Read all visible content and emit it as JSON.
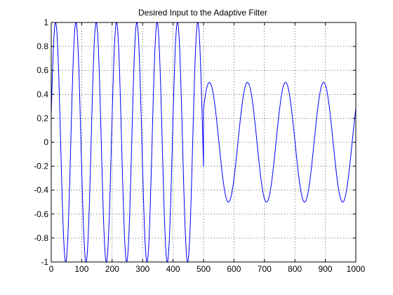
{
  "chart_data": {
    "type": "line",
    "title": "Desired Input to the Adaptive Filter",
    "xlabel": "",
    "ylabel": "",
    "xlim": [
      0,
      1000
    ],
    "ylim": [
      -1,
      1
    ],
    "xticks": [
      0,
      100,
      200,
      300,
      400,
      500,
      600,
      700,
      800,
      900,
      1000
    ],
    "xtick_labels": [
      "0",
      "100",
      "200",
      "300",
      "400",
      "500",
      "600",
      "700",
      "800",
      "900",
      "1000"
    ],
    "yticks": [
      -1,
      -0.8,
      -0.6,
      -0.4,
      -0.2,
      0,
      0.2,
      0.4,
      0.6,
      0.8,
      1
    ],
    "ytick_labels": [
      "-1",
      "-0.8",
      "-0.6",
      "-0.4",
      "-0.2",
      "0",
      "0.2",
      "0.4",
      "0.6",
      "0.8",
      "1"
    ],
    "grid": true,
    "series": [
      {
        "color": "#0000ff",
        "segments": [
          {
            "x_start": 0,
            "x_end": 500,
            "amplitude": 1.0,
            "period": 66.7,
            "phase": 0.23
          },
          {
            "x_start": 500,
            "x_end": 1000,
            "amplitude": 0.5,
            "period": 125,
            "phase": 0.6
          }
        ]
      }
    ]
  }
}
